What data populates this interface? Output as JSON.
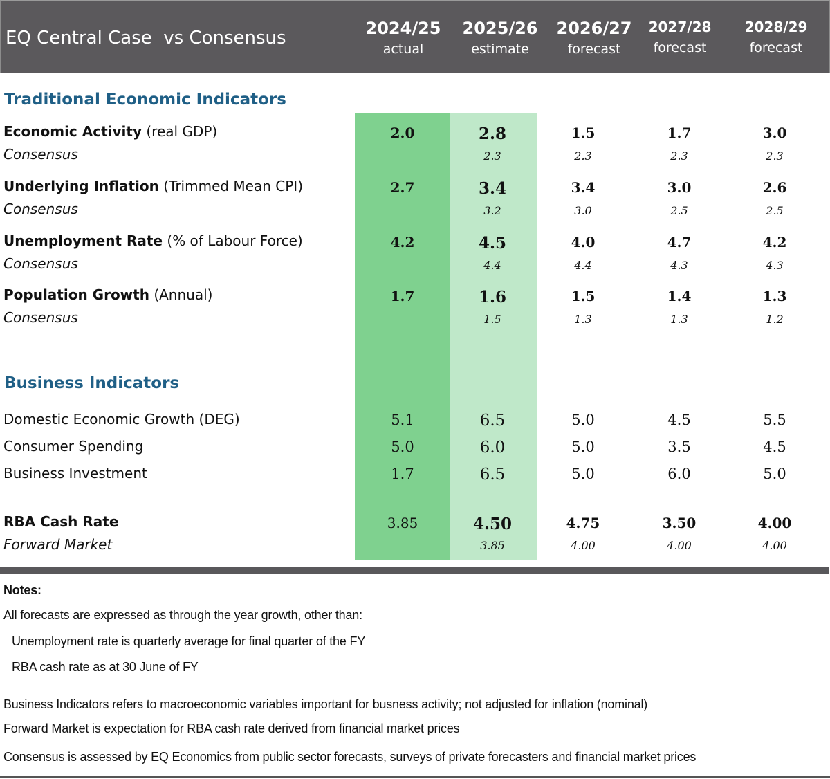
{
  "header": {
    "title": "EQ Central Case  vs Consensus",
    "columns": [
      {
        "year": "2024/25",
        "kind": "actual"
      },
      {
        "year": "2025/26",
        "kind": "estimate"
      },
      {
        "year": "2026/27",
        "kind": "forecast"
      },
      {
        "year": "2027/28",
        "kind": "forecast"
      },
      {
        "year": "2028/29",
        "kind": "forecast"
      }
    ]
  },
  "colors": {
    "header_bg": "#5b595c",
    "section_title": "#1f5f86",
    "actual_band": "#7fd18f",
    "estimate_band": "#bfe8c9"
  },
  "traditional": {
    "title": "Traditional Economic Indicators",
    "rows": [
      {
        "name": "Economic Activity",
        "qualifier": " (real GDP)",
        "consensus_label": "Consensus",
        "values": [
          "2.0",
          "2.8",
          "1.5",
          "1.7",
          "3.0"
        ],
        "consensus": [
          "",
          "2.3",
          "2.3",
          "2.3",
          "2.3"
        ]
      },
      {
        "name": "Underlying Inflation",
        "qualifier": " (Trimmed Mean CPI)",
        "consensus_label": "Consensus",
        "values": [
          "2.7",
          "3.4",
          "3.4",
          "3.0",
          "2.6"
        ],
        "consensus": [
          "",
          "3.2",
          "3.0",
          "2.5",
          "2.5"
        ]
      },
      {
        "name": "Unemployment Rate",
        "qualifier": " (% of Labour Force)",
        "consensus_label": "Consensus",
        "values": [
          "4.2",
          "4.5",
          "4.0",
          "4.7",
          "4.2"
        ],
        "consensus": [
          "",
          "4.4",
          "4.4",
          "4.3",
          "4.3"
        ]
      },
      {
        "name": "Population Growth",
        "qualifier": " (Annual)",
        "consensus_label": "Consensus",
        "values": [
          "1.7",
          "1.6",
          "1.5",
          "1.4",
          "1.3"
        ],
        "consensus": [
          "",
          "1.5",
          "1.3",
          "1.3",
          "1.2"
        ]
      }
    ]
  },
  "business": {
    "title": "Business Indicators",
    "rows": [
      {
        "name": "Domestic Economic Growth (DEG)",
        "values": [
          "5.1",
          "6.5",
          "5.0",
          "4.5",
          "5.5"
        ]
      },
      {
        "name": "Consumer Spending",
        "values": [
          "5.0",
          "6.0",
          "5.0",
          "3.5",
          "4.5"
        ]
      },
      {
        "name": "Business Investment",
        "values": [
          "1.7",
          "6.5",
          "5.0",
          "6.0",
          "5.0"
        ]
      }
    ]
  },
  "cash_rate": {
    "name": "RBA Cash Rate",
    "forward_label": "Forward Market",
    "values": [
      "3.85",
      "4.50",
      "4.75",
      "3.50",
      "4.00"
    ],
    "forward": [
      "",
      "3.85",
      "4.00",
      "4.00",
      "4.00"
    ]
  },
  "notes": {
    "heading": "Notes:",
    "line1": "All forecasts are expressed as through the year growth, other than:",
    "line2": "Unemployment rate is quarterly average for final quarter of the FY",
    "line3": "RBA cash rate as at 30 June of FY",
    "line4": "Business Indicators refers to macroeconomic variables important for busness activity; not adjusted for inflation (nominal)",
    "line5": "Forward Market is expectation for RBA cash rate  derived from financial market prices",
    "line6": "Consensus is assessed by EQ Economics from public sector forecasts, surveys of private forecasters and financial market prices"
  }
}
